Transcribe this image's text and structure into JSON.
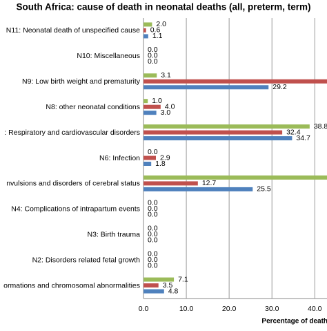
{
  "chart_data": {
    "type": "hbar",
    "title": "South Africa: cause of death in neonatal deaths (all, preterm, term)",
    "xlabel": "Percentage of deaths",
    "categories": [
      "N11: Neonatal death of unspecified cause",
      "N10: Miscellaneous",
      "N9: Low birth weight and prematurity",
      "N8: other neonatal conditions",
      ": Respiratory and cardiovascular disorders",
      "N6: Infection",
      "nvulsions and disorders of cerebral status",
      "N4: Complications of intrapartum events",
      "N3: Birth trauma",
      "N2: Disorders related fetal growth",
      "ormations and chromosomal abnormalities"
    ],
    "series": [
      {
        "color": "#9bbb59",
        "values": [
          2.0,
          0,
          3.1,
          1.0,
          38.8,
          0,
          45,
          0,
          0,
          0,
          7.1
        ],
        "value_labels": [
          "2.0",
          "0.0",
          "3.1",
          "1.0",
          "38.8",
          "0.0",
          null,
          "0.0",
          "0.0",
          "0.0",
          "7.1"
        ]
      },
      {
        "color": "#c0504d",
        "values": [
          0.6,
          0,
          46,
          4.0,
          32.4,
          2.9,
          12.7,
          0,
          0,
          0,
          3.5
        ],
        "value_labels": [
          "0.6",
          "0.0",
          null,
          "4.0",
          "32.4",
          "2.9",
          "12.7",
          "0.0",
          "0.0",
          "0.0",
          "3.5"
        ]
      },
      {
        "color": "#4f81bd",
        "values": [
          1.1,
          0,
          29.2,
          3.0,
          34.7,
          1.8,
          25.5,
          0,
          0,
          0,
          4.8
        ],
        "value_labels": [
          "1.1",
          "0.0",
          "29.2",
          "3.0",
          "34.7",
          "1.8",
          "25.5",
          "0.0",
          "0.0",
          "0.0",
          "4.8"
        ]
      }
    ],
    "xlim": [
      0,
      43.5
    ],
    "xticks": [
      {
        "value": 0,
        "label": "0.0"
      },
      {
        "value": 10,
        "label": "10.0"
      },
      {
        "value": 20,
        "label": "20.0"
      },
      {
        "value": 30,
        "label": "30.0"
      },
      {
        "value": 40,
        "label": "40.0"
      }
    ],
    "grid": true
  }
}
